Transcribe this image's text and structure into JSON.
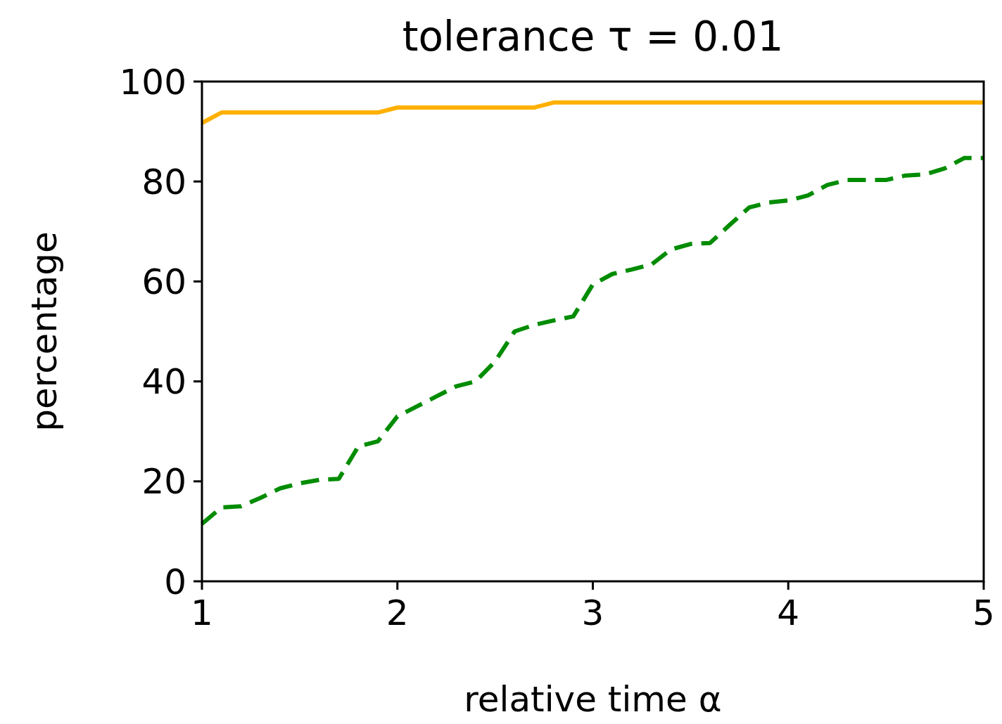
{
  "chart_data": {
    "type": "line",
    "title": "tolerance τ = 0.01",
    "xlabel": "relative time α",
    "ylabel": "percentage",
    "x": [
      1.0,
      1.1,
      1.2,
      1.3,
      1.4,
      1.5,
      1.6,
      1.7,
      1.8,
      1.9,
      2.0,
      2.1,
      2.2,
      2.3,
      2.4,
      2.5,
      2.6,
      2.7,
      2.8,
      2.9,
      3.0,
      3.1,
      3.2,
      3.3,
      3.4,
      3.5,
      3.6,
      3.7,
      3.8,
      3.9,
      4.0,
      4.1,
      4.2,
      4.3,
      4.4,
      4.5,
      4.6,
      4.7,
      4.8,
      4.9,
      5.0
    ],
    "series": [
      {
        "color": "#ffb000",
        "line_style": "solid",
        "values": [
          91.7,
          93.8,
          93.8,
          93.8,
          93.8,
          93.8,
          93.8,
          93.8,
          93.8,
          93.8,
          94.8,
          94.8,
          94.8,
          94.8,
          94.8,
          94.8,
          94.8,
          94.8,
          95.8,
          95.8,
          95.8,
          95.8,
          95.8,
          95.8,
          95.8,
          95.8,
          95.8,
          95.8,
          95.8,
          95.8,
          95.8,
          95.8,
          95.8,
          95.8,
          95.8,
          95.8,
          95.8,
          95.8,
          95.8,
          95.8,
          95.8
        ]
      },
      {
        "color": "#008c00",
        "line_style": "dashed",
        "values": [
          11.5,
          14.8,
          15,
          16.7,
          18.6,
          19.6,
          20.3,
          20.5,
          27,
          28,
          33,
          35,
          37,
          39,
          40,
          44,
          50,
          51.3,
          52.2,
          53,
          59.4,
          61.5,
          62.4,
          63.4,
          66.4,
          67.5,
          67.7,
          71.3,
          74.8,
          75.8,
          76.2,
          77.2,
          79.3,
          80.3,
          80.3,
          80.3,
          81.2,
          81.4,
          82.6,
          84.7,
          84.7
        ]
      }
    ],
    "xlim": [
      1,
      5
    ],
    "xticks": [
      1,
      2,
      3,
      4,
      5
    ],
    "ylim": [
      0,
      100
    ],
    "yticks": [
      0,
      20,
      40,
      60,
      80,
      100
    ],
    "grid": false,
    "marker": "none"
  }
}
